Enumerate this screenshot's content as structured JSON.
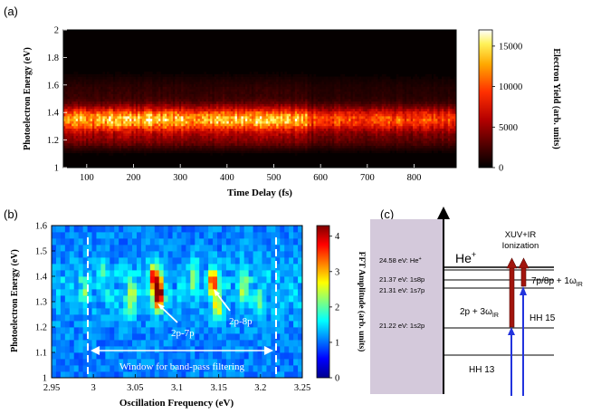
{
  "chart_data": [
    {
      "panel_label": "(a)",
      "type": "heatmap",
      "xlabel": "Time Delay (fs)",
      "ylabel": "Photoelectron Energy (eV)",
      "xlim": [
        50,
        890
      ],
      "ylim": [
        1,
        2
      ],
      "x_ticks": [
        "100",
        "200",
        "300",
        "400",
        "500",
        "600",
        "700",
        "800"
      ],
      "y_ticks": [
        "1",
        "1.2",
        "1.4",
        "1.6",
        "1.8",
        "2"
      ],
      "colorbar": {
        "label": "Electron Yield (arb. units)",
        "range": [
          0,
          17000
        ],
        "ticks": [
          "0",
          "5000",
          "10000",
          "15000"
        ]
      },
      "features": {
        "band_center_eV": 1.35,
        "band_peak_yield": 15000,
        "band_dim_after_fs": 570
      }
    },
    {
      "panel_label": "(b)",
      "type": "heatmap",
      "xlabel": "Oscillation Frequency (eV)",
      "ylabel": "Photoelectron Energy (eV)",
      "xlim": [
        2.95,
        3.25
      ],
      "ylim": [
        1.0,
        1.6
      ],
      "x_ticks": [
        "2.95",
        "3",
        "3.05",
        "3.1",
        "3.15",
        "3.2",
        "3.25"
      ],
      "y_ticks": [
        "1",
        "1.1",
        "1.2",
        "1.3",
        "1.4",
        "1.5",
        "1.6"
      ],
      "colorbar": {
        "label": "FFT Amplitude (arb. units)",
        "range": [
          0,
          4.3
        ],
        "ticks": [
          "0",
          "1",
          "2",
          "3",
          "4"
        ]
      },
      "annotations": [
        {
          "text": "2p-7p",
          "x": 3.078,
          "y": 1.33,
          "value": 4.2
        },
        {
          "text": "2p-8p",
          "x": 3.143,
          "y": 1.38,
          "value": 3.0
        },
        {
          "text": "Window for band-pass filtering",
          "x_range": [
            3.0,
            3.215
          ]
        }
      ]
    }
  ],
  "diagram_c": {
    "panel_label": "(c)",
    "ion_label": "He",
    "ion_charge": "+",
    "header_line1": "XUV+IR",
    "header_line2": "Ionization",
    "levels": [
      {
        "label": "24.58 eV: He",
        "sup": "+"
      },
      {
        "label": "21.37 eV: 1s8p"
      },
      {
        "label": "21.31 eV: 1s7p"
      },
      {
        "label": "21.22 eV: 1s2p"
      }
    ],
    "right_label_7p8p": "7p/8p + 1ω",
    "right_label_7p8p_sub": "IR",
    "label_2p": "2p + 3ω",
    "label_2p_sub": "IR",
    "label_hh15": "HH 15",
    "label_hh13": "HH 13"
  },
  "colors": {
    "panel_c_bg": "#d4c9db",
    "arrow_blue": "#2233dd",
    "arrow_red": "#a2150d",
    "dashed": "#ffffff"
  }
}
